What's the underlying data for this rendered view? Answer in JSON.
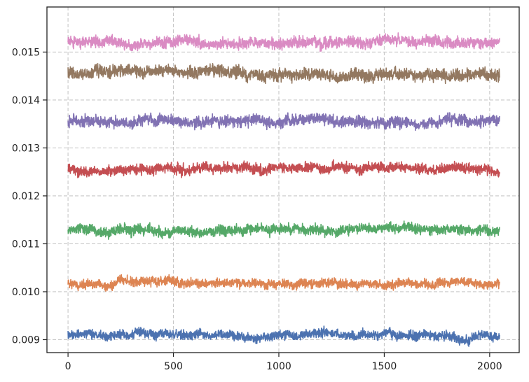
{
  "chart_data": {
    "type": "line",
    "title": "",
    "xlabel": "",
    "ylabel": "",
    "xlim": [
      -100,
      2140
    ],
    "ylim": [
      0.00873,
      0.01594
    ],
    "grid": true,
    "grid_style": "dashed",
    "n_points": 2048,
    "x_ticks": [
      0,
      500,
      1000,
      1500,
      2000
    ],
    "x_tick_labels": [
      "0",
      "500",
      "1000",
      "1500",
      "2000"
    ],
    "y_ticks": [
      0.009,
      0.01,
      0.011,
      0.012,
      0.013,
      0.014,
      0.015
    ],
    "y_tick_labels": [
      "0.009",
      "0.010",
      "0.011",
      "0.012",
      "0.013",
      "0.014",
      "0.015"
    ],
    "series": [
      {
        "color": "#4c72b0",
        "mean": 0.00909,
        "noise_amplitude": 9e-05
      },
      {
        "color": "#dd8452",
        "mean": 0.01017,
        "noise_amplitude": 9e-05
      },
      {
        "color": "#55a868",
        "mean": 0.01128,
        "noise_amplitude": 0.0001
      },
      {
        "color": "#c44e52",
        "mean": 0.01255,
        "noise_amplitude": 0.0001
      },
      {
        "color": "#8172b3",
        "mean": 0.01355,
        "noise_amplitude": 0.00011
      },
      {
        "color": "#937860",
        "mean": 0.01455,
        "noise_amplitude": 0.00012
      },
      {
        "color": "#da8bc3",
        "mean": 0.0152,
        "noise_amplitude": 0.00011
      }
    ]
  }
}
